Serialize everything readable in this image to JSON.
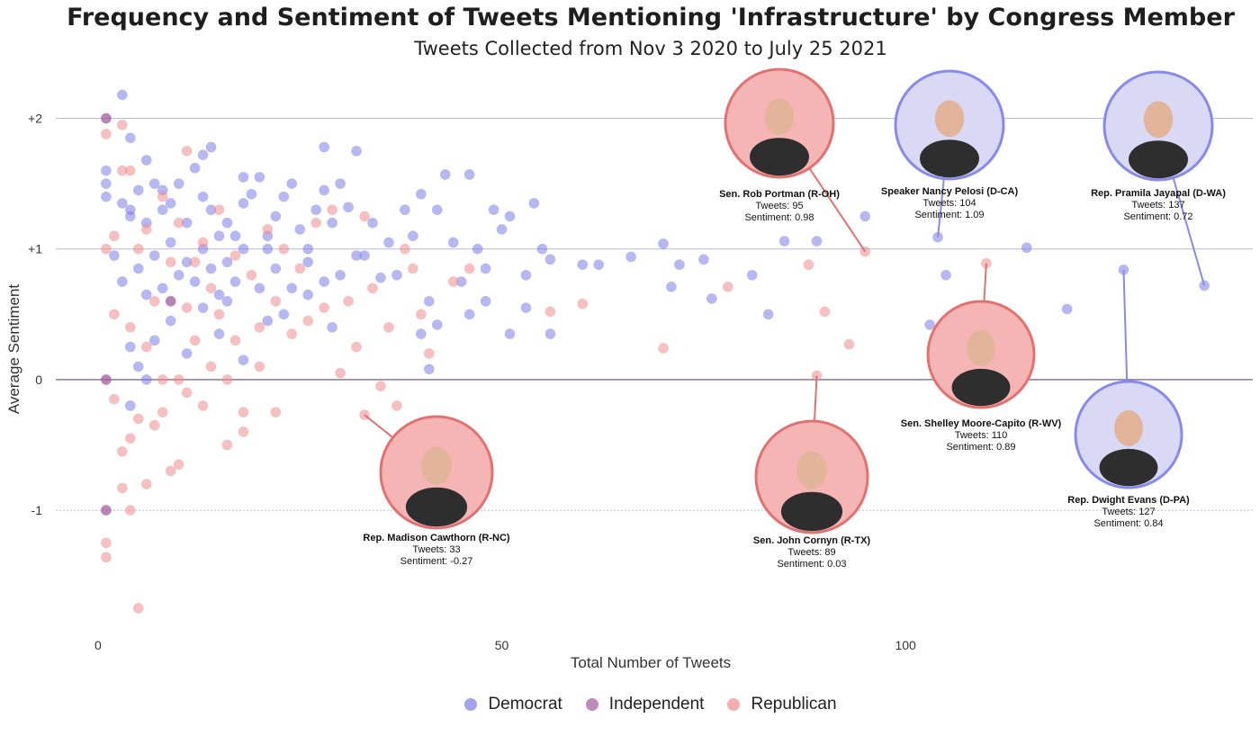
{
  "chart_data": {
    "type": "scatter",
    "title": "Frequency and Sentiment of Tweets Mentioning 'Infrastructure' by Congress Member",
    "subtitle": "Tweets Collected from Nov 3 2020 to July 25 2021",
    "xlabel": "Total Number of Tweets",
    "ylabel": "Average Sentiment",
    "xlim": [
      -3,
      143
    ],
    "ylim": [
      -1.95,
      2.3
    ],
    "x_ticks": [
      0,
      50,
      100
    ],
    "y_ticks": [
      {
        "value": -1,
        "label": "-1"
      },
      {
        "value": 0,
        "label": "0"
      },
      {
        "value": 1,
        "label": "+1"
      },
      {
        "value": 2,
        "label": "+2"
      }
    ],
    "grid": "horizontal",
    "legend_position": "bottom",
    "colors": {
      "Democrat": "#7b7be6",
      "Independent": "#a35a9e",
      "Republican": "#f08c8c"
    },
    "series": [
      {
        "name": "Democrat",
        "points": [
          [
            1,
            1.6
          ],
          [
            1,
            1.5
          ],
          [
            1,
            1.4
          ],
          [
            3,
            2.18
          ],
          [
            3,
            1.35
          ],
          [
            4,
            1.85
          ],
          [
            4,
            1.3
          ],
          [
            5,
            1.45
          ],
          [
            6,
            1.2
          ],
          [
            6,
            1.68
          ],
          [
            7,
            1.5
          ],
          [
            8,
            1.3
          ],
          [
            8,
            1.45
          ],
          [
            9,
            1.35
          ],
          [
            10,
            1.5
          ],
          [
            11,
            1.2
          ],
          [
            12,
            1.62
          ],
          [
            13,
            1.4
          ],
          [
            13,
            1.72
          ],
          [
            14,
            1.3
          ],
          [
            14,
            1.78
          ],
          [
            15,
            1.1
          ],
          [
            16,
            1.2
          ],
          [
            17,
            1.1
          ],
          [
            18,
            1.35
          ],
          [
            18,
            1.55
          ],
          [
            19,
            1.42
          ],
          [
            20,
            1.55
          ],
          [
            21,
            1.1
          ],
          [
            22,
            1.25
          ],
          [
            23,
            1.4
          ],
          [
            24,
            1.5
          ],
          [
            25,
            1.15
          ],
          [
            26,
            1.0
          ],
          [
            27,
            1.3
          ],
          [
            28,
            1.45
          ],
          [
            28,
            1.78
          ],
          [
            29,
            1.2
          ],
          [
            30,
            1.5
          ],
          [
            31,
            1.32
          ],
          [
            32,
            1.75
          ],
          [
            33,
            0.95
          ],
          [
            34,
            1.2
          ],
          [
            36,
            1.05
          ],
          [
            37,
            0.8
          ],
          [
            38,
            1.3
          ],
          [
            39,
            1.1
          ],
          [
            40,
            1.42
          ],
          [
            41,
            0.6
          ],
          [
            42,
            1.3
          ],
          [
            43,
            1.57
          ],
          [
            44,
            1.05
          ],
          [
            45,
            0.75
          ],
          [
            46,
            1.57
          ],
          [
            47,
            1.0
          ],
          [
            48,
            0.85
          ],
          [
            49,
            1.3
          ],
          [
            50,
            1.15
          ],
          [
            51,
            1.25
          ],
          [
            53,
            0.8
          ],
          [
            54,
            1.35
          ],
          [
            55,
            1.0
          ],
          [
            56,
            0.92
          ],
          [
            2,
            0.95
          ],
          [
            3,
            0.75
          ],
          [
            4,
            1.25
          ],
          [
            5,
            0.85
          ],
          [
            6,
            0.65
          ],
          [
            7,
            0.95
          ],
          [
            8,
            0.7
          ],
          [
            9,
            1.05
          ],
          [
            10,
            0.8
          ],
          [
            11,
            0.9
          ],
          [
            12,
            0.75
          ],
          [
            13,
            1.0
          ],
          [
            14,
            0.85
          ],
          [
            15,
            0.65
          ],
          [
            16,
            0.9
          ],
          [
            17,
            0.75
          ],
          [
            18,
            1.0
          ],
          [
            20,
            0.7
          ],
          [
            21,
            1.0
          ],
          [
            22,
            0.85
          ],
          [
            24,
            0.7
          ],
          [
            26,
            0.9
          ],
          [
            28,
            0.75
          ],
          [
            30,
            0.8
          ],
          [
            32,
            0.95
          ],
          [
            35,
            0.78
          ],
          [
            4,
            0.25
          ],
          [
            5,
            0.1
          ],
          [
            6,
            0.0
          ],
          [
            7,
            0.3
          ],
          [
            9,
            0.45
          ],
          [
            11,
            0.2
          ],
          [
            13,
            0.55
          ],
          [
            15,
            0.35
          ],
          [
            16,
            0.6
          ],
          [
            18,
            0.15
          ],
          [
            21,
            0.45
          ],
          [
            23,
            0.5
          ],
          [
            26,
            0.65
          ],
          [
            29,
            0.4
          ],
          [
            4,
            -0.2
          ],
          [
            40,
            0.35
          ],
          [
            41,
            0.08
          ],
          [
            42,
            0.42
          ],
          [
            46,
            0.5
          ],
          [
            48,
            0.6
          ],
          [
            51,
            0.35
          ],
          [
            53,
            0.55
          ],
          [
            56,
            0.35
          ],
          [
            60,
            0.88
          ],
          [
            62,
            0.88
          ],
          [
            66,
            0.94
          ],
          [
            70,
            1.04
          ],
          [
            71,
            0.71
          ],
          [
            72,
            0.88
          ],
          [
            75,
            0.92
          ],
          [
            76,
            0.62
          ],
          [
            81,
            0.8
          ],
          [
            83,
            0.5
          ],
          [
            85,
            1.06
          ],
          [
            89,
            1.06
          ],
          [
            95,
            1.25
          ],
          [
            104,
            1.09
          ],
          [
            103,
            0.42
          ],
          [
            105,
            0.8
          ],
          [
            115,
            1.01
          ],
          [
            120,
            0.54
          ],
          [
            127,
            0.84
          ],
          [
            137,
            0.72
          ]
        ]
      },
      {
        "name": "Independent",
        "points": [
          [
            1,
            2.0
          ],
          [
            1,
            0.0
          ],
          [
            1,
            -1.0
          ],
          [
            9,
            0.6
          ]
        ]
      },
      {
        "name": "Republican",
        "points": [
          [
            1,
            1.88
          ],
          [
            1,
            1.0
          ],
          [
            1,
            -1.25
          ],
          [
            1,
            -1.36
          ],
          [
            2,
            0.5
          ],
          [
            2,
            1.1
          ],
          [
            2,
            -0.15
          ],
          [
            3,
            1.95
          ],
          [
            3,
            1.6
          ],
          [
            3,
            -0.55
          ],
          [
            3,
            -0.83
          ],
          [
            4,
            1.6
          ],
          [
            4,
            0.4
          ],
          [
            4,
            -0.45
          ],
          [
            4,
            -1.0
          ],
          [
            5,
            1.0
          ],
          [
            5,
            -0.3
          ],
          [
            5,
            -1.75
          ],
          [
            6,
            1.15
          ],
          [
            6,
            0.25
          ],
          [
            6,
            -0.8
          ],
          [
            7,
            0.6
          ],
          [
            7,
            -0.35
          ],
          [
            8,
            1.4
          ],
          [
            8,
            -0.25
          ],
          [
            8,
            0.0
          ],
          [
            9,
            0.9
          ],
          [
            9,
            -0.7
          ],
          [
            10,
            1.2
          ],
          [
            10,
            0.0
          ],
          [
            10,
            -0.65
          ],
          [
            11,
            1.75
          ],
          [
            11,
            0.55
          ],
          [
            11,
            -0.1
          ],
          [
            12,
            0.9
          ],
          [
            12,
            0.3
          ],
          [
            13,
            1.05
          ],
          [
            13,
            -0.2
          ],
          [
            14,
            0.7
          ],
          [
            14,
            0.1
          ],
          [
            15,
            1.3
          ],
          [
            15,
            0.5
          ],
          [
            16,
            0.0
          ],
          [
            16,
            -0.5
          ],
          [
            17,
            0.95
          ],
          [
            17,
            0.3
          ],
          [
            18,
            -0.25
          ],
          [
            18,
            -0.4
          ],
          [
            19,
            0.8
          ],
          [
            20,
            0.4
          ],
          [
            20,
            0.1
          ],
          [
            21,
            1.15
          ],
          [
            22,
            0.6
          ],
          [
            22,
            -0.25
          ],
          [
            23,
            1.0
          ],
          [
            24,
            0.35
          ],
          [
            25,
            0.85
          ],
          [
            26,
            0.45
          ],
          [
            27,
            1.2
          ],
          [
            28,
            0.55
          ],
          [
            29,
            1.3
          ],
          [
            30,
            0.05
          ],
          [
            31,
            0.6
          ],
          [
            32,
            0.25
          ],
          [
            33,
            1.25
          ],
          [
            33,
            -0.27
          ],
          [
            34,
            0.7
          ],
          [
            35,
            -0.05
          ],
          [
            36,
            0.4
          ],
          [
            37,
            -0.2
          ],
          [
            38,
            1.0
          ],
          [
            39,
            0.85
          ],
          [
            40,
            0.5
          ],
          [
            41,
            0.2
          ],
          [
            44,
            0.75
          ],
          [
            46,
            0.85
          ],
          [
            56,
            0.52
          ],
          [
            60,
            0.58
          ],
          [
            70,
            0.24
          ],
          [
            78,
            0.71
          ],
          [
            88,
            0.88
          ],
          [
            89,
            0.03
          ],
          [
            90,
            0.52
          ],
          [
            93,
            0.27
          ],
          [
            95,
            0.98
          ],
          [
            110,
            0.89
          ]
        ]
      }
    ],
    "annotations": [
      {
        "name": "Rep. Madison Cawthorn (R-NC)",
        "party": "Republican",
        "tweets": 33,
        "sentiment": -0.27,
        "stats": [
          "Tweets: 33",
          "Sentiment: -0.27"
        ]
      },
      {
        "name": "Sen. John Cornyn (R-TX)",
        "party": "Republican",
        "tweets": 89,
        "sentiment": 0.03,
        "stats": [
          "Tweets: 89",
          "Sentiment: 0.03"
        ]
      },
      {
        "name": "Sen. Rob Portman (R-OH)",
        "party": "Republican",
        "tweets": 95,
        "sentiment": 0.98,
        "stats": [
          "Tweets: 95",
          "Sentiment: 0.98"
        ]
      },
      {
        "name": "Speaker Nancy Pelosi (D-CA)",
        "party": "Democrat",
        "tweets": 104,
        "sentiment": 1.09,
        "stats": [
          "Tweets: 104",
          "Sentiment: 1.09"
        ]
      },
      {
        "name": "Sen. Shelley Moore-Capito (R-WV)",
        "party": "Republican",
        "tweets": 110,
        "sentiment": 0.89,
        "stats": [
          "Tweets: 110",
          "Sentiment: 0.89"
        ]
      },
      {
        "name": "Rep. Dwight Evans (D-PA)",
        "party": "Democrat",
        "tweets": 127,
        "sentiment": 0.84,
        "stats": [
          "Tweets: 127",
          "Sentiment: 0.84"
        ]
      },
      {
        "name": "Rep. Pramila Jayapal (D-WA)",
        "party": "Democrat",
        "tweets": 137,
        "sentiment": 0.72,
        "stats": [
          "Tweets: 137",
          "Sentiment: 0.72"
        ]
      }
    ]
  }
}
